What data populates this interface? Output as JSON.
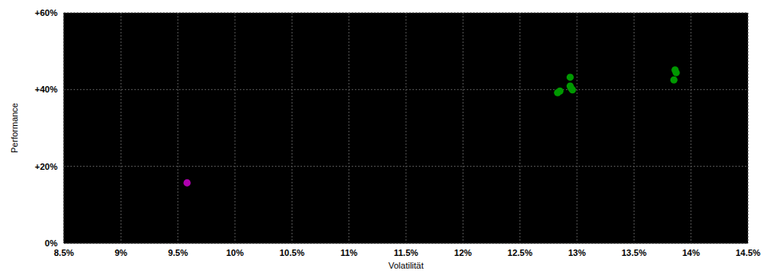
{
  "chart_data": {
    "type": "scatter",
    "x_label": "Volatilität",
    "y_label": "Performance",
    "x": [
      9.58,
      12.83,
      12.85,
      12.94,
      12.94,
      12.95,
      12.96,
      13.86,
      13.87,
      13.85
    ],
    "values": [
      15.7,
      39.2,
      39.6,
      43.2,
      40.9,
      40.3,
      39.9,
      45.1,
      44.4,
      42.5
    ],
    "colors": [
      "#b000b0",
      "#009900",
      "#009900",
      "#009900",
      "#009900",
      "#009900",
      "#009900",
      "#009900",
      "#009900",
      "#009900"
    ],
    "marker": "circle",
    "xlim": [
      8.5,
      14.5
    ],
    "ylim": [
      0,
      60
    ],
    "xticks": [
      {
        "value": 8.5,
        "label": "8.5%"
      },
      {
        "value": 9,
        "label": "9%"
      },
      {
        "value": 9.5,
        "label": "9.5%"
      },
      {
        "value": 10,
        "label": "10%"
      },
      {
        "value": 10.5,
        "label": "10.5%"
      },
      {
        "value": 11,
        "label": "11%"
      },
      {
        "value": 11.5,
        "label": "11.5%"
      },
      {
        "value": 12,
        "label": "12%"
      },
      {
        "value": 12.5,
        "label": "12.5%"
      },
      {
        "value": 13,
        "label": "13%"
      },
      {
        "value": 13.5,
        "label": "13.5%"
      },
      {
        "value": 14,
        "label": "14%"
      },
      {
        "value": 14.5,
        "label": "14.5%"
      }
    ],
    "yticks": [
      {
        "value": 0,
        "label": "0%"
      },
      {
        "value": 20,
        "label": "+20%"
      },
      {
        "value": 40,
        "label": "+40%"
      },
      {
        "value": 60,
        "label": "+60%"
      }
    ],
    "grid": true
  }
}
